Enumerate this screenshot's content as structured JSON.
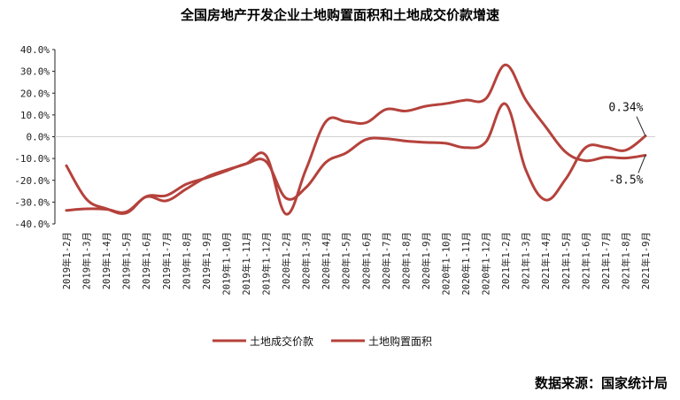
{
  "chart_data": {
    "type": "line",
    "title": "全国房地产开发企业土地购置面积和土地成交价款增速",
    "source": "数据来源：国家统计局",
    "ylim": [
      -40,
      40
    ],
    "yticks": [
      "40.0%",
      "30.0%",
      "20.0%",
      "10.0%",
      "0.0%",
      "-10.0%",
      "-20.0%",
      "-30.0%",
      "-40.0%"
    ],
    "ytick_values": [
      40,
      30,
      20,
      10,
      0,
      -10,
      -20,
      -30,
      -40
    ],
    "categories": [
      "2019年1-2月",
      "2019年1-3月",
      "2019年1-4月",
      "2019年1-5月",
      "2019年1-6月",
      "2019年1-7月",
      "2019年1-8月",
      "2019年1-9月",
      "2019年1-10月",
      "2019年1-11月",
      "2019年1-12月",
      "2020年1-2月",
      "2020年1-3月",
      "2020年1-4月",
      "2020年1-5月",
      "2020年1-6月",
      "2020年1-7月",
      "2020年1-8月",
      "2020年1-9月",
      "2020年1-10月",
      "2020年1-11月",
      "2020年1-12月",
      "2021年1-2月",
      "2021年1-3月",
      "2021年1-4月",
      "2021年1-5月",
      "2021年1-6月",
      "2021年1-7月",
      "2021年1-8月",
      "2021年1-9月"
    ],
    "series": [
      {
        "name": "土地成交价款",
        "color": "#b5423c",
        "values": [
          -13.3,
          -28.6,
          -33.0,
          -35.0,
          -27.6,
          -29.4,
          -24.0,
          -18.6,
          -15.3,
          -12.4,
          -8.7,
          -35.5,
          -15.0,
          7.0,
          7.0,
          6.4,
          12.5,
          11.8,
          14.0,
          15.2,
          16.8,
          17.4,
          33.0,
          17.0,
          4.6,
          -7.0,
          -11.0,
          -9.4,
          -9.8,
          -8.5
        ]
      },
      {
        "name": "土地购置面积",
        "color": "#b5423c",
        "values": [
          -33.8,
          -33.1,
          -33.3,
          -34.5,
          -27.4,
          -27.0,
          -21.8,
          -18.9,
          -15.7,
          -12.4,
          -11.4,
          -28.2,
          -23.3,
          -11.7,
          -7.5,
          -1.3,
          -0.9,
          -2.0,
          -2.6,
          -3.0,
          -5.0,
          -2.5,
          15.0,
          -15.0,
          -29.0,
          -19.5,
          -5.0,
          -4.8,
          -6.2,
          0.34
        ]
      }
    ],
    "annotations": [
      {
        "text": "0.34%",
        "series": "土地购置面积",
        "value": 0.34
      },
      {
        "text": "-8.5%",
        "series": "土地成交价款",
        "value": -8.5
      }
    ],
    "legend": "bottom-center"
  }
}
